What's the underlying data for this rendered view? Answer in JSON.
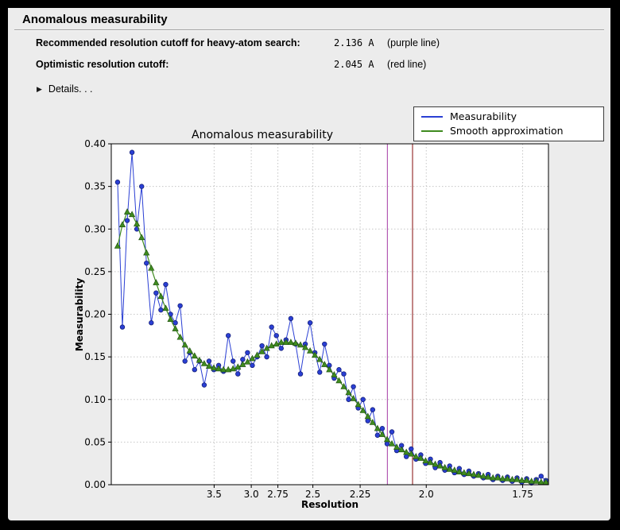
{
  "window": {
    "title": "Anomalous measurability"
  },
  "info": {
    "rows": [
      {
        "label": "Recommended resolution cutoff for heavy-atom search:",
        "value": "2.136 A",
        "note": "(purple line)"
      },
      {
        "label": "Optimistic resolution cutoff:",
        "value": "2.045 A",
        "note": "(red line)"
      }
    ],
    "details_label": "Details. . ."
  },
  "chart_data": {
    "type": "line",
    "title": "Anomalous measurability",
    "xlabel": "Resolution",
    "ylabel": "Measurability",
    "ylim": [
      0.0,
      0.4
    ],
    "grid": true,
    "legend_position": "upper right",
    "colors": {
      "grid": "#c6c6c6",
      "plot_bg": "#ffffff",
      "figure_bg": "#ececec",
      "axis": "#000000"
    },
    "y_ticks": [
      {
        "v": 0.0,
        "label": "0.00"
      },
      {
        "v": 0.05,
        "label": "0.05"
      },
      {
        "v": 0.1,
        "label": "0.10"
      },
      {
        "v": 0.15,
        "label": "0.15"
      },
      {
        "v": 0.2,
        "label": "0.20"
      },
      {
        "v": 0.25,
        "label": "0.25"
      },
      {
        "v": 0.3,
        "label": "0.30"
      },
      {
        "v": 0.35,
        "label": "0.35"
      },
      {
        "v": 0.4,
        "label": "0.40"
      }
    ],
    "x_axis": {
      "unit": "Angstrom",
      "transform": "position proportional to 1/d^2",
      "max_s2": 0.347,
      "ticks": [
        {
          "d": 3.5,
          "label": "3.5"
        },
        {
          "d": 3.0,
          "label": "3.0"
        },
        {
          "d": 2.75,
          "label": "2.75"
        },
        {
          "d": 2.5,
          "label": "2.5"
        },
        {
          "d": 2.25,
          "label": "2.25"
        },
        {
          "d": 2.0,
          "label": "2.0"
        },
        {
          "d": 1.75,
          "label": "1.75"
        }
      ]
    },
    "x_s2": [
      0.005,
      0.00882,
      0.01264,
      0.01646,
      0.02028,
      0.0241,
      0.02792,
      0.03174,
      0.03556,
      0.03938,
      0.0432,
      0.04702,
      0.05084,
      0.05466,
      0.05848,
      0.0623,
      0.06612,
      0.06994,
      0.07376,
      0.07758,
      0.0814,
      0.08522,
      0.08904,
      0.09286,
      0.09668,
      0.1005,
      0.10432,
      0.10814,
      0.11196,
      0.11578,
      0.1196,
      0.12342,
      0.12724,
      0.13106,
      0.13488,
      0.1387,
      0.14252,
      0.14634,
      0.15016,
      0.15398,
      0.1578,
      0.16162,
      0.16544,
      0.16926,
      0.17308,
      0.1769,
      0.18072,
      0.18454,
      0.18836,
      0.19218,
      0.196,
      0.19982,
      0.20364,
      0.20746,
      0.21128,
      0.2151,
      0.21892,
      0.22274,
      0.22656,
      0.23038,
      0.2342,
      0.23802,
      0.24184,
      0.24566,
      0.24948,
      0.2533,
      0.25712,
      0.26094,
      0.26476,
      0.26858,
      0.2724,
      0.27622,
      0.28004,
      0.28386,
      0.28768,
      0.2915,
      0.29532,
      0.29914,
      0.30296,
      0.30678,
      0.3106,
      0.31442,
      0.31824,
      0.32206,
      0.32588,
      0.3297,
      0.33352,
      0.33734,
      0.34116,
      0.34498
    ],
    "series": [
      {
        "name": "Measurability",
        "color": "#2a3fd4",
        "marker": "circle",
        "marker_edge": "#16207a",
        "values": [
          0.355,
          0.185,
          0.31,
          0.39,
          0.3,
          0.35,
          0.26,
          0.19,
          0.225,
          0.205,
          0.235,
          0.2,
          0.19,
          0.21,
          0.145,
          0.155,
          0.135,
          0.145,
          0.117,
          0.145,
          0.135,
          0.14,
          0.133,
          0.175,
          0.145,
          0.13,
          0.147,
          0.155,
          0.14,
          0.15,
          0.163,
          0.15,
          0.185,
          0.175,
          0.16,
          0.17,
          0.195,
          0.165,
          0.13,
          0.165,
          0.19,
          0.155,
          0.132,
          0.165,
          0.14,
          0.125,
          0.135,
          0.13,
          0.1,
          0.115,
          0.09,
          0.1,
          0.075,
          0.088,
          0.058,
          0.066,
          0.048,
          0.062,
          0.04,
          0.046,
          0.033,
          0.042,
          0.03,
          0.035,
          0.025,
          0.03,
          0.02,
          0.026,
          0.017,
          0.022,
          0.014,
          0.019,
          0.012,
          0.016,
          0.01,
          0.013,
          0.008,
          0.012,
          0.006,
          0.01,
          0.005,
          0.009,
          0.004,
          0.008,
          0.003,
          0.007,
          0.002,
          0.006,
          0.01,
          0.005
        ]
      },
      {
        "name": "Smooth approximation",
        "color": "#3f8b1f",
        "marker": "triangle",
        "marker_edge": "#1e4d10",
        "values": [
          0.28,
          0.305,
          0.32,
          0.317,
          0.306,
          0.29,
          0.272,
          0.254,
          0.237,
          0.221,
          0.207,
          0.194,
          0.183,
          0.173,
          0.164,
          0.157,
          0.151,
          0.146,
          0.142,
          0.139,
          0.137,
          0.136,
          0.135,
          0.135,
          0.136,
          0.138,
          0.141,
          0.144,
          0.148,
          0.152,
          0.156,
          0.16,
          0.163,
          0.165,
          0.167,
          0.167,
          0.167,
          0.166,
          0.164,
          0.161,
          0.157,
          0.152,
          0.147,
          0.141,
          0.135,
          0.129,
          0.122,
          0.115,
          0.108,
          0.101,
          0.094,
          0.087,
          0.08,
          0.073,
          0.066,
          0.059,
          0.053,
          0.048,
          0.044,
          0.041,
          0.038,
          0.036,
          0.033,
          0.031,
          0.028,
          0.026,
          0.024,
          0.022,
          0.02,
          0.018,
          0.017,
          0.015,
          0.014,
          0.013,
          0.012,
          0.011,
          0.01,
          0.009,
          0.008,
          0.008,
          0.007,
          0.007,
          0.006,
          0.006,
          0.005,
          0.005,
          0.004,
          0.004,
          0.003,
          0.003
        ]
      }
    ],
    "vlines": [
      {
        "name": "purple line",
        "resolution_a": 2.136,
        "color": "#b35ab3"
      },
      {
        "name": "red line",
        "resolution_a": 2.045,
        "color": "#993333"
      }
    ]
  }
}
